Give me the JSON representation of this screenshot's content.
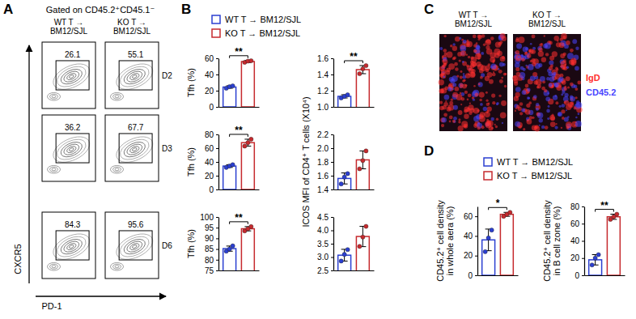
{
  "panel_labels": [
    "A",
    "B",
    "C",
    "D"
  ],
  "flow": {
    "header": "Gated on CD45.2⁺CD45.1⁻",
    "columns": [
      [
        "WT T →",
        "BM12/SJL"
      ],
      [
        "KO T →",
        "BM12/SJL"
      ]
    ],
    "rows": [
      {
        "label": "D2",
        "gates": [
          26.1,
          55.1
        ]
      },
      {
        "label": "D3",
        "gates": [
          36.2,
          67.7
        ]
      },
      {
        "label": "D6",
        "gates": [
          84.3,
          95.6
        ]
      }
    ],
    "xlabel": "PD-1",
    "ylabel": "CXCR5"
  },
  "legends": {
    "B": [
      {
        "name": "WT T → BM12/SJL",
        "color": "#2b3fd1"
      },
      {
        "name": "KO T → BM12/SJL",
        "color": "#c62a2e"
      }
    ],
    "D": [
      {
        "name": "WT T → BM12/SJL",
        "color": "#2b3fd1"
      },
      {
        "name": "KO T → BM12/SJL",
        "color": "#c62a2e"
      }
    ]
  },
  "images": {
    "columns": [
      [
        "WT T →",
        "BM12/SJL"
      ],
      [
        "KO T →",
        "BM12/SJL"
      ]
    ],
    "channels": [
      {
        "name": "IgD",
        "color": "#ff2f2f"
      },
      {
        "name": "CD45.2",
        "color": "#4a46ff"
      }
    ]
  },
  "chart_data": [
    {
      "type": "bar",
      "categories": [
        null,
        null
      ],
      "colors": [
        "#2b3fd1",
        "#c62a2e"
      ],
      "tick_labels": "y",
      "values": [
        24.5,
        56
      ],
      "errors": [
        1.5,
        1.2
      ],
      "points": [
        [
          23,
          25,
          26
        ],
        [
          55,
          56.5,
          57
        ]
      ],
      "ylim": [
        0,
        60
      ],
      "yticks": [
        0,
        20,
        40,
        60
      ],
      "ylabel": [
        "Tfh (%)"
      ],
      "annotations": [
        "**"
      ]
    },
    {
      "type": "bar",
      "categories": [
        null,
        null
      ],
      "colors": [
        "#2b3fd1",
        "#c62a2e"
      ],
      "tick_labels": "y",
      "values": [
        1.13,
        1.46
      ],
      "errors": [
        0.02,
        0.05
      ],
      "points": [
        [
          1.11,
          1.13,
          1.15
        ],
        [
          1.41,
          1.47,
          1.51
        ]
      ],
      "ylim": [
        1.0,
        1.6
      ],
      "yticks": [
        {
          "value": 1.0,
          "label": "1.0"
        },
        1.2,
        1.4,
        1.6
      ],
      "annotations": [
        "**"
      ]
    },
    {
      "type": "bar",
      "categories": [
        null,
        null
      ],
      "colors": [
        "#2b3fd1",
        "#c62a2e"
      ],
      "tick_labels": "y",
      "values": [
        34,
        68
      ],
      "errors": [
        2,
        5
      ],
      "points": [
        [
          32,
          34,
          36
        ],
        [
          63,
          68,
          73
        ]
      ],
      "ylim": [
        0,
        80
      ],
      "yticks": [
        0,
        20,
        40,
        60,
        80
      ],
      "ylabel": [
        "Tfh (%)"
      ],
      "annotations": [
        "**"
      ]
    },
    {
      "type": "bar",
      "categories": [
        null,
        null
      ],
      "colors": [
        "#2b3fd1",
        "#c62a2e"
      ],
      "tick_labels": "y",
      "values": [
        1.56,
        1.83
      ],
      "errors": [
        0.08,
        0.13
      ],
      "points": [
        [
          1.48,
          1.58,
          1.63
        ],
        [
          1.7,
          1.82,
          1.96
        ]
      ],
      "ylim": [
        1.4,
        2.2
      ],
      "yticks": [
        1.4,
        1.6,
        1.8,
        {
          "value": 2.0,
          "label": "2.0"
        },
        2.2
      ],
      "ylabel": [
        "ICOS MFI of CD4⁺ T cells (X10⁴)"
      ]
    },
    {
      "type": "bar",
      "categories": [
        null,
        null
      ],
      "colors": [
        "#2b3fd1",
        "#c62a2e"
      ],
      "tick_labels": "y",
      "values": [
        85.2,
        94.5
      ],
      "errors": [
        1.2,
        1
      ],
      "points": [
        [
          84,
          85,
          86.5
        ],
        [
          93.5,
          94.5,
          95.5
        ]
      ],
      "ylim": [
        75,
        100
      ],
      "yticks": [
        75,
        80,
        85,
        90,
        95,
        100
      ],
      "ylabel": [
        "Tfh (%)"
      ],
      "annotations": [
        "**"
      ]
    },
    {
      "type": "bar",
      "categories": [
        null,
        null
      ],
      "colors": [
        "#2b3fd1",
        "#c62a2e"
      ],
      "tick_labels": "y",
      "values": [
        3.07,
        3.77
      ],
      "errors": [
        0.22,
        0.38
      ],
      "points": [
        [
          2.85,
          3.1,
          3.28
        ],
        [
          3.4,
          3.75,
          4.15
        ]
      ],
      "ylim": [
        2.5,
        4.5
      ],
      "yticks": [
        2.5,
        {
          "value": 3.0,
          "label": "3.0"
        },
        3.5,
        {
          "value": 4.0,
          "label": "4.0"
        },
        4.5
      ]
    },
    {
      "type": "bar",
      "categories": [
        null,
        null
      ],
      "colors": [
        "#2b3fd1",
        "#c62a2e"
      ],
      "tick_labels": "y",
      "values": [
        36,
        62
      ],
      "errors": [
        11,
        2
      ],
      "points": [
        [
          24,
          38,
          46
        ],
        [
          60,
          62,
          64
        ]
      ],
      "ylim": [
        0,
        70
      ],
      "yticks": [
        0,
        20,
        40,
        60
      ],
      "ylabel": [
        "CD45.2⁺ cell density",
        "in whole aera (%)"
      ],
      "annotations": [
        "*"
      ]
    },
    {
      "type": "bar",
      "categories": [
        null,
        null
      ],
      "colors": [
        "#2b3fd1",
        "#c62a2e"
      ],
      "tick_labels": "y",
      "values": [
        18,
        68
      ],
      "errors": [
        6,
        3
      ],
      "points": [
        [
          12,
          20,
          24
        ],
        [
          65,
          68,
          71
        ]
      ],
      "ylim": [
        0,
        80
      ],
      "yticks": [
        0,
        20,
        40,
        60,
        80
      ],
      "ylabel": [
        "CD45.2⁺ cell density",
        "in B cell zone (%)"
      ],
      "annotations": [
        "**"
      ]
    }
  ]
}
